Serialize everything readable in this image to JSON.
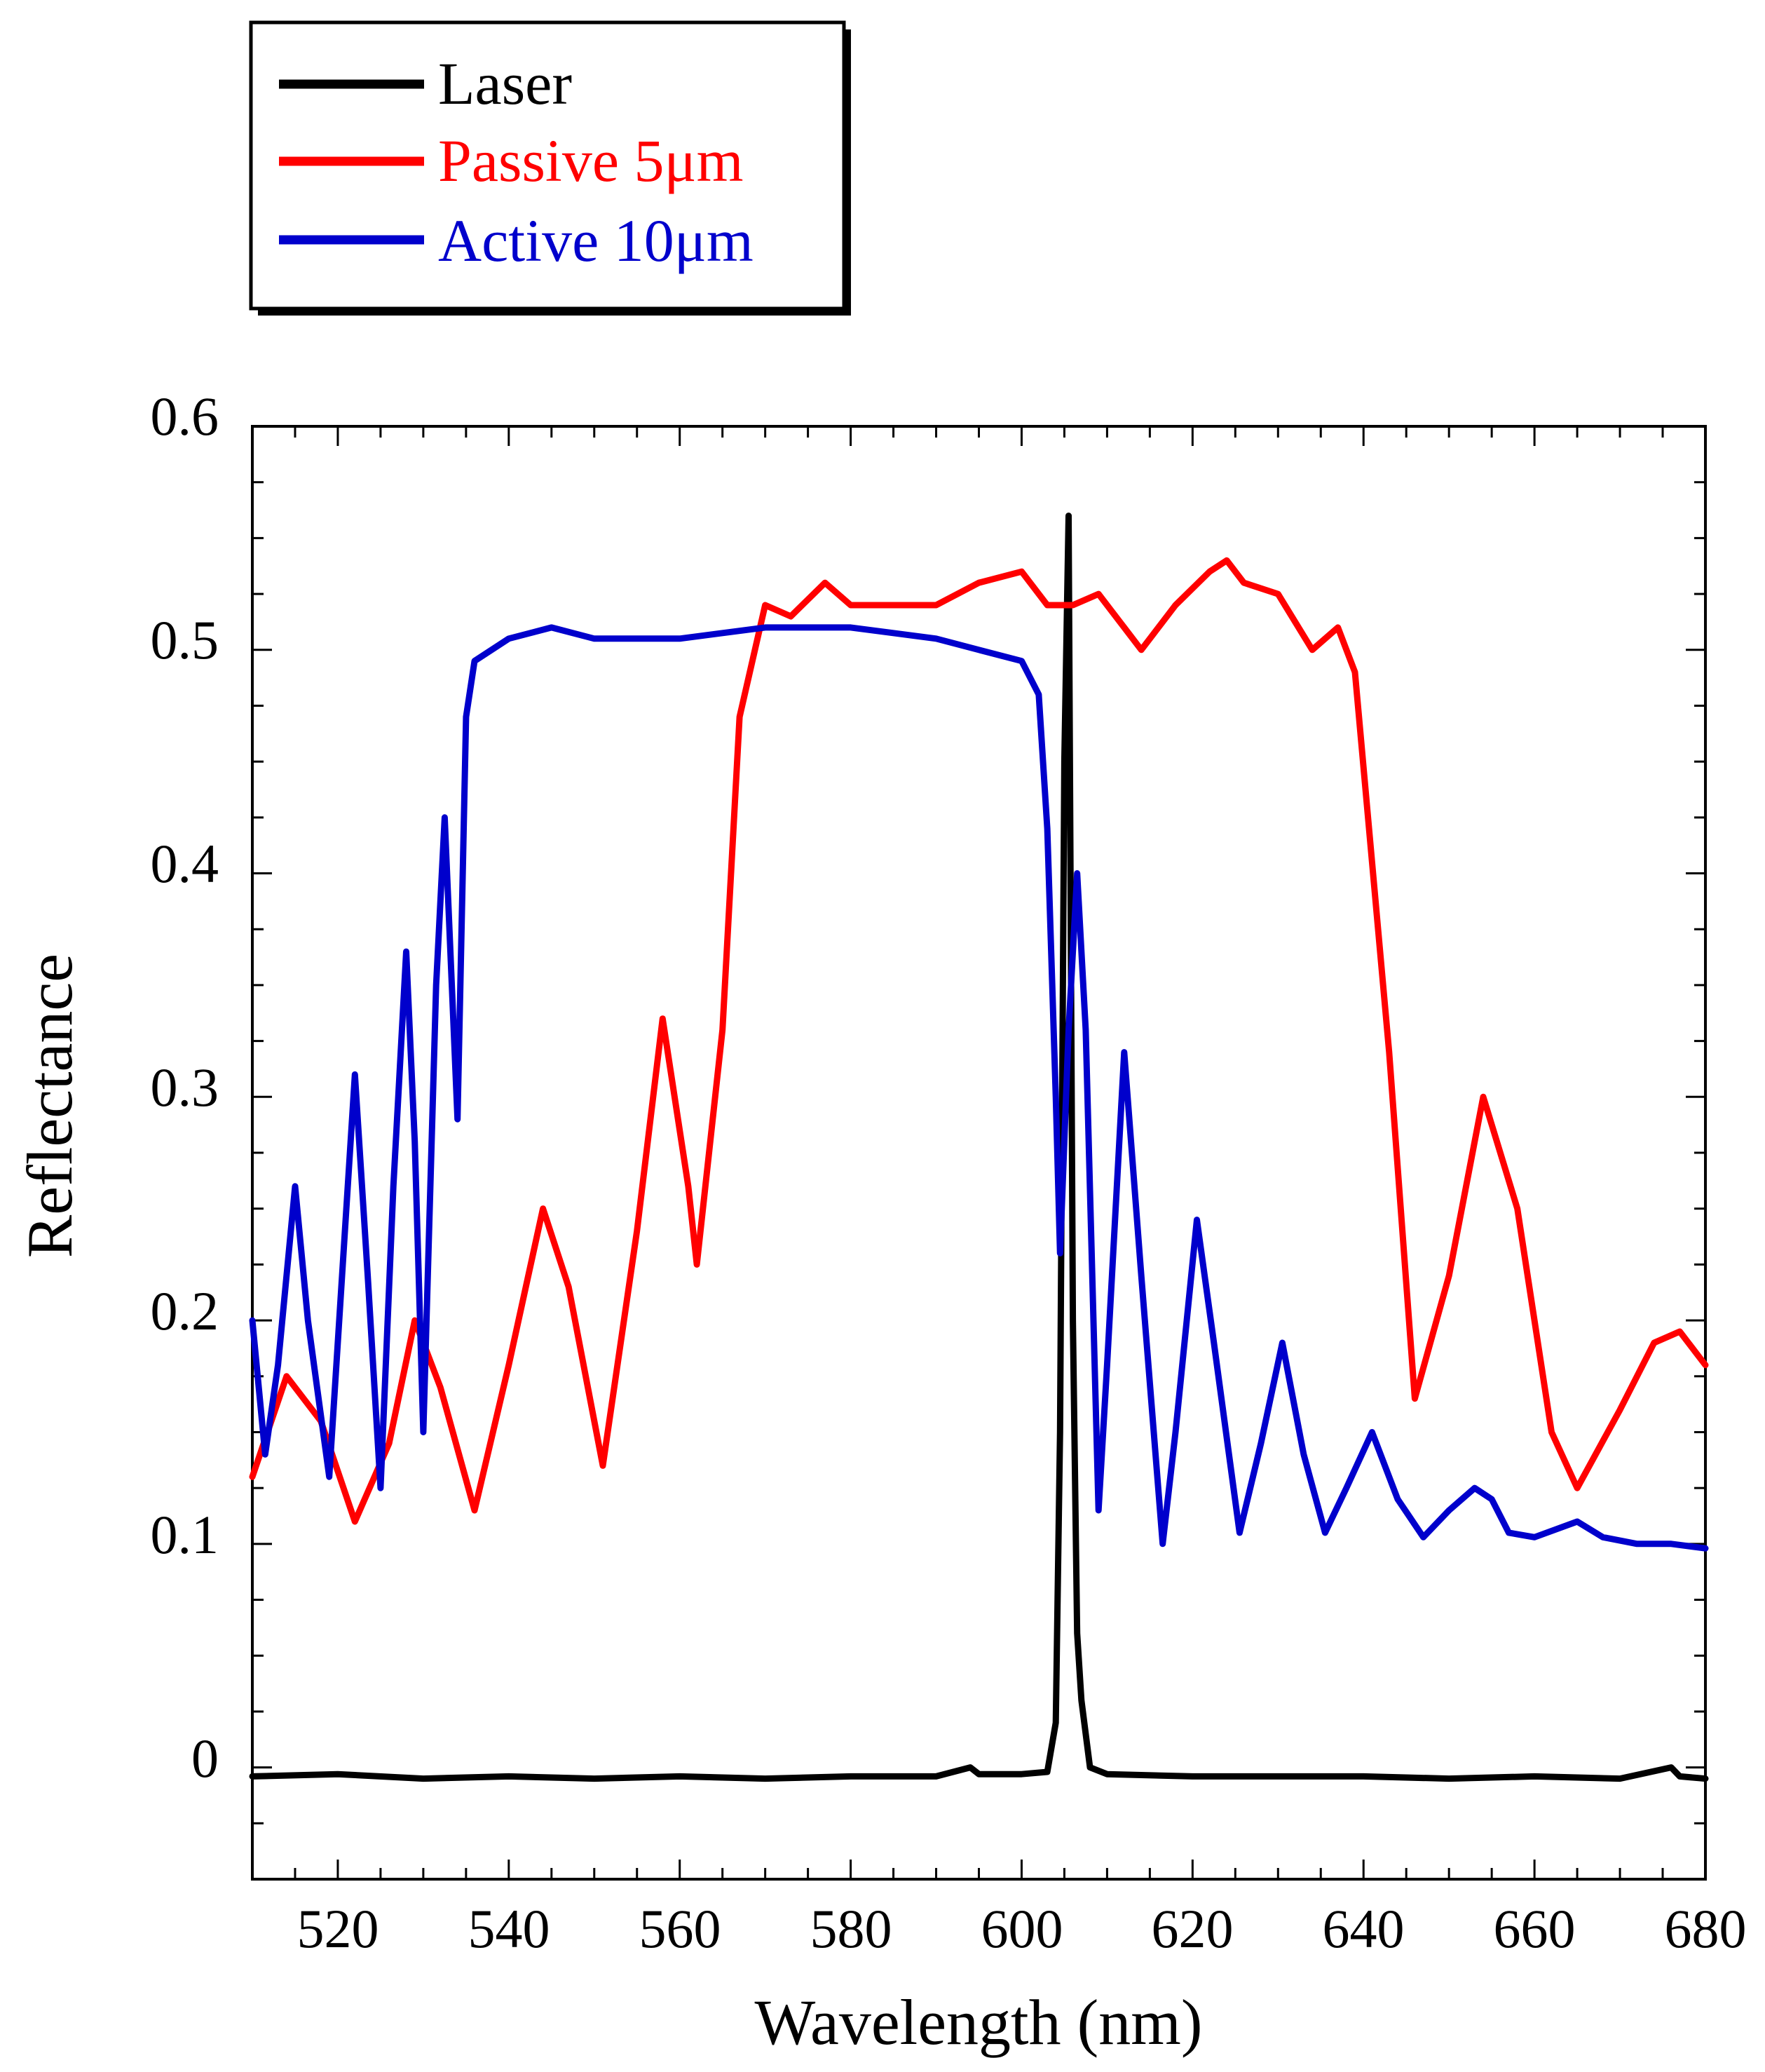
{
  "chart_data": {
    "type": "line",
    "title": "",
    "xlabel": "Wavelength (nm)",
    "ylabel": "Reflectance",
    "xlim": [
      510,
      680
    ],
    "ylim": [
      -0.05,
      0.6
    ],
    "xticks": [
      520,
      540,
      560,
      580,
      600,
      620,
      640,
      660,
      680
    ],
    "yticks": [
      0,
      0.1,
      0.2,
      0.3,
      0.4,
      0.5,
      0.6
    ],
    "xtick_labels": [
      "520",
      "540",
      "560",
      "580",
      "600",
      "620",
      "640",
      "660",
      "680"
    ],
    "ytick_labels": [
      "0",
      "0.1",
      "0.2",
      "0.3",
      "0.4",
      "0.5",
      "0.6"
    ],
    "legend_position": "top-left, above plot",
    "grid": false,
    "series": [
      {
        "name": "Laser",
        "color": "#000000",
        "x": [
          510,
          520,
          530,
          540,
          550,
          560,
          570,
          580,
          590,
          594,
          595,
          600,
          603,
          604,
          604.5,
          605,
          605.5,
          606,
          606.5,
          607,
          608,
          610,
          620,
          630,
          640,
          650,
          660,
          670,
          676,
          677,
          680
        ],
        "y": [
          -0.004,
          -0.003,
          -0.005,
          -0.004,
          -0.005,
          -0.004,
          -0.005,
          -0.004,
          -0.004,
          0.0,
          -0.003,
          -0.003,
          -0.002,
          0.02,
          0.15,
          0.45,
          0.56,
          0.2,
          0.06,
          0.03,
          0.0,
          -0.003,
          -0.004,
          -0.004,
          -0.004,
          -0.005,
          -0.004,
          -0.005,
          0.0,
          -0.004,
          -0.005
        ]
      },
      {
        "name": "Passive 5μm",
        "color": "#ff0000",
        "x": [
          510,
          514,
          518,
          522,
          526,
          529,
          532,
          536,
          540,
          544,
          547,
          551,
          555,
          558,
          561,
          562,
          565,
          567,
          570,
          573,
          577,
          580,
          585,
          590,
          595,
          600,
          603,
          606,
          609,
          612,
          614,
          618,
          622,
          624,
          626,
          630,
          634,
          637,
          639,
          643,
          646,
          650,
          654,
          658,
          662,
          665,
          670,
          674,
          677,
          680
        ],
        "y": [
          0.13,
          0.175,
          0.155,
          0.11,
          0.145,
          0.2,
          0.17,
          0.115,
          0.18,
          0.25,
          0.215,
          0.135,
          0.24,
          0.335,
          0.26,
          0.225,
          0.33,
          0.47,
          0.52,
          0.515,
          0.53,
          0.52,
          0.52,
          0.52,
          0.53,
          0.535,
          0.52,
          0.52,
          0.525,
          0.51,
          0.5,
          0.52,
          0.535,
          0.54,
          0.53,
          0.525,
          0.5,
          0.51,
          0.49,
          0.32,
          0.165,
          0.22,
          0.3,
          0.25,
          0.15,
          0.125,
          0.16,
          0.19,
          0.195,
          0.18
        ]
      },
      {
        "name": "Active 10μm",
        "color": "#0000cc",
        "x": [
          510,
          511.5,
          513,
          515,
          516.5,
          519,
          520.5,
          522,
          523.5,
          525,
          526.5,
          528,
          529,
          530,
          531.5,
          532.5,
          534,
          535,
          536,
          540,
          545,
          550,
          560,
          570,
          580,
          590,
          595,
          600,
          602,
          603,
          604,
          604.5,
          605.5,
          606.5,
          607.5,
          609,
          610,
          612,
          614,
          616.5,
          618,
          620.5,
          622.5,
          625.5,
          628,
          630.5,
          633,
          635.5,
          638,
          641,
          644,
          647,
          650,
          653,
          655,
          657,
          660,
          665,
          668,
          672,
          676,
          680
        ],
        "y": [
          0.2,
          0.14,
          0.18,
          0.26,
          0.2,
          0.13,
          0.22,
          0.31,
          0.22,
          0.125,
          0.26,
          0.365,
          0.28,
          0.15,
          0.35,
          0.425,
          0.29,
          0.47,
          0.495,
          0.505,
          0.51,
          0.505,
          0.505,
          0.51,
          0.51,
          0.505,
          0.5,
          0.495,
          0.48,
          0.42,
          0.3,
          0.23,
          0.33,
          0.4,
          0.33,
          0.115,
          0.18,
          0.32,
          0.22,
          0.1,
          0.15,
          0.245,
          0.19,
          0.105,
          0.145,
          0.19,
          0.14,
          0.105,
          0.125,
          0.15,
          0.12,
          0.103,
          0.115,
          0.125,
          0.12,
          0.105,
          0.103,
          0.11,
          0.103,
          0.1,
          0.1,
          0.098
        ]
      }
    ]
  }
}
